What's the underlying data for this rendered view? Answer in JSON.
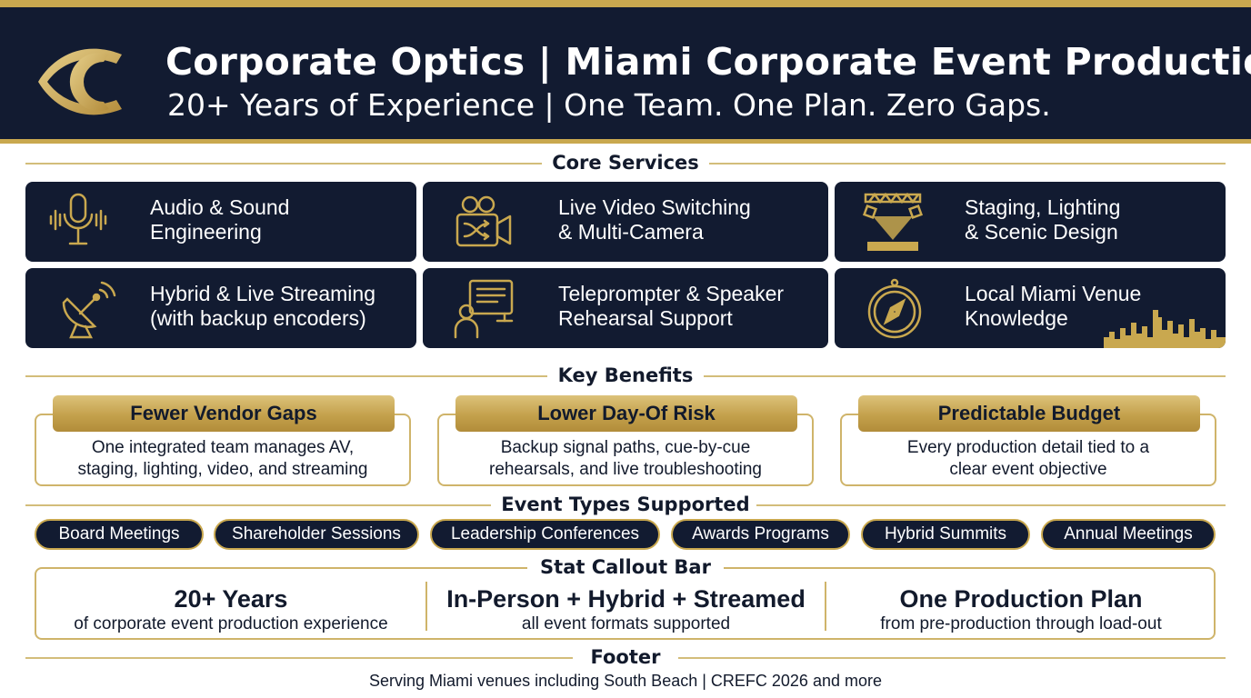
{
  "header": {
    "title": "Corporate Optics | Miami Corporate Event Production",
    "subtitle": "20+ Years of Experience | One Team. One Plan. Zero Gaps."
  },
  "sections": {
    "core_services": "Core Services",
    "key_benefits": "Key Benefits",
    "event_types": "Event Types Supported",
    "stat_bar": "Stat Callout Bar",
    "footer": "Footer"
  },
  "services": [
    {
      "label": "Audio & Sound\nEngineering",
      "icon": "microphone-icon"
    },
    {
      "label": "Live Video Switching\n& Multi-Camera",
      "icon": "video-camera-icon"
    },
    {
      "label": "Staging, Lighting\n& Scenic Design",
      "icon": "stage-truss-icon"
    },
    {
      "label": "Hybrid & Live Streaming\n(with backup encoders)",
      "icon": "satellite-dish-icon"
    },
    {
      "label": "Teleprompter & Speaker\nRehearsal Support",
      "icon": "speaker-teleprompter-icon"
    },
    {
      "label": "Local Miami Venue\nKnowledge",
      "icon": "compass-icon"
    }
  ],
  "benefits": [
    {
      "title": "Fewer Vendor Gaps",
      "desc": "One integrated team manages AV,\nstaging, lighting, video, and streaming"
    },
    {
      "title": "Lower Day-Of Risk",
      "desc": "Backup signal paths, cue-by-cue\nrehearsals, and live troubleshooting"
    },
    {
      "title": "Predictable Budget",
      "desc": "Every production detail tied to a\nclear event objective"
    }
  ],
  "event_types": [
    "Board Meetings",
    "Shareholder Sessions",
    "Leadership Conferences",
    "Awards Programs",
    "Hybrid Summits",
    "Annual Meetings"
  ],
  "stats": [
    {
      "big": "20+ Years",
      "small": "of corporate event production experience"
    },
    {
      "big": "In-Person + Hybrid + Streamed",
      "small": "all event formats supported"
    },
    {
      "big": "One Production Plan",
      "small": "from pre-production through load-out"
    }
  ],
  "footer": {
    "text": "Serving Miami venues including South Beach | CREFC 2026 and more"
  },
  "colors": {
    "navy": "#121b31",
    "gold": "#c9a84f",
    "gold_light": "#dcc27a"
  }
}
